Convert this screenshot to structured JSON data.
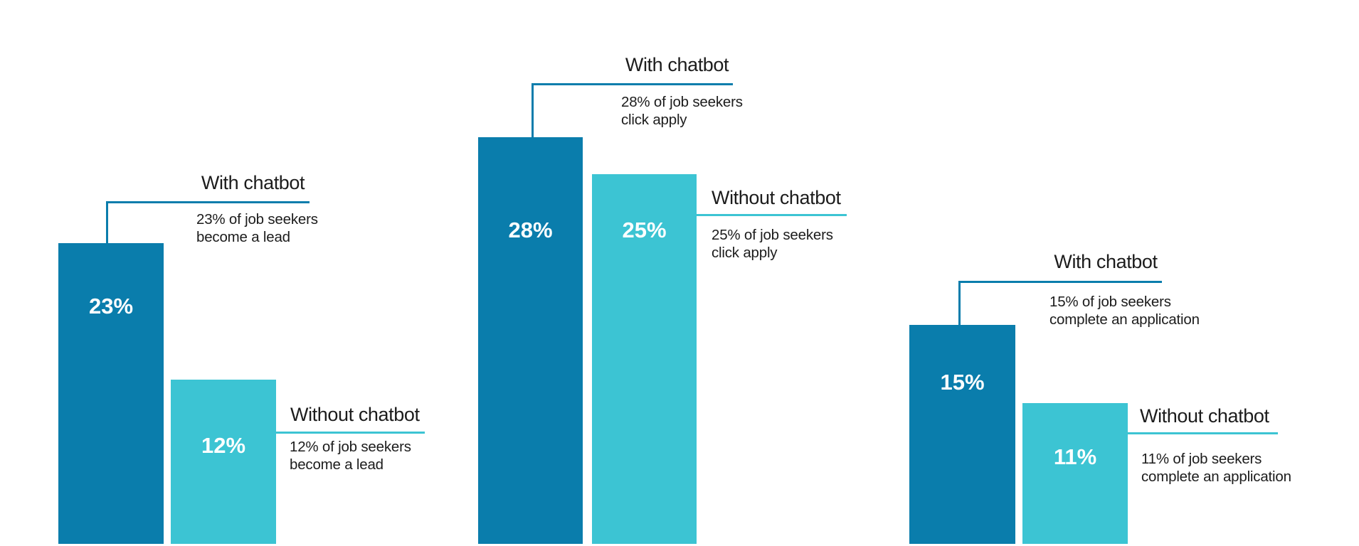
{
  "colors": {
    "dark_blue": "#0A7DAC",
    "teal": "#3CC4D3",
    "text": "#1C1C1C",
    "background": "#FFFFFF"
  },
  "chart_data": {
    "type": "bar",
    "unit": "%",
    "legend_position": "none",
    "axes_visible": false,
    "categories": [
      "become a lead",
      "click apply",
      "complete an application"
    ],
    "series": [
      {
        "name": "With chatbot",
        "values": [
          23,
          28,
          15
        ],
        "color": "#0A7DAC"
      },
      {
        "name": "Without chatbot",
        "values": [
          12,
          25,
          11
        ],
        "color": "#3CC4D3"
      }
    ],
    "groups": [
      {
        "with": {
          "heading": "With chatbot",
          "value": 23,
          "value_label": "23%",
          "desc_line1": "23% of job seekers",
          "desc_line2": "become a lead"
        },
        "without": {
          "heading": "Without chatbot",
          "value": 12,
          "value_label": "12%",
          "desc_line1": "12% of job seekers",
          "desc_line2": "become a lead"
        }
      },
      {
        "with": {
          "heading": "With chatbot",
          "value": 28,
          "value_label": "28%",
          "desc_line1": "28% of job seekers",
          "desc_line2": "click apply"
        },
        "without": {
          "heading": "Without chatbot",
          "value": 25,
          "value_label": "25%",
          "desc_line1": "25% of job seekers",
          "desc_line2": "click apply"
        }
      },
      {
        "with": {
          "heading": "With chatbot",
          "value": 15,
          "value_label": "15%",
          "desc_line1": "15% of job seekers",
          "desc_line2": "complete an application"
        },
        "without": {
          "heading": "Without chatbot",
          "value": 11,
          "value_label": "11%",
          "desc_line1": "11% of job seekers",
          "desc_line2": "complete an application"
        }
      }
    ]
  }
}
